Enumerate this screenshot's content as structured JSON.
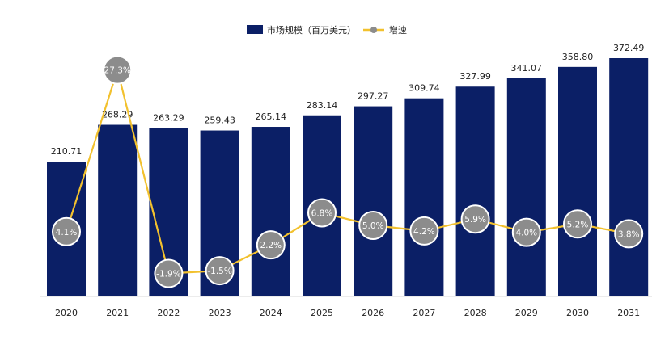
{
  "colors": {
    "bar": "#0B1F66",
    "line": "#F2C12E",
    "marker_fill": "#8C8C8C",
    "marker_stroke": "#FFFFFF",
    "label_text": "#222222",
    "marker_text": "#FFFFFF"
  },
  "chart_data": {
    "type": "bar",
    "title": "",
    "xlabel": "",
    "ylabel": "",
    "categories": [
      "2020",
      "2021",
      "2022",
      "2023",
      "2024",
      "2025",
      "2026",
      "2027",
      "2028",
      "2029",
      "2030",
      "2031"
    ],
    "series": [
      {
        "name": "市场规模（百万美元）",
        "type": "bar",
        "values": [
          210.71,
          268.29,
          263.29,
          259.43,
          265.14,
          283.14,
          297.27,
          309.74,
          327.99,
          341.07,
          358.8,
          372.49
        ],
        "labels": [
          "210.71",
          "268.29",
          "263.29",
          "259.43",
          "265.14",
          "283.14",
          "297.27",
          "309.74",
          "327.99",
          "341.07",
          "358.80",
          "372.49"
        ]
      },
      {
        "name": "增速",
        "type": "line",
        "values": [
          4.1,
          27.3,
          -1.9,
          -1.5,
          2.2,
          6.8,
          5.0,
          4.2,
          5.9,
          4.0,
          5.2,
          3.8
        ],
        "labels": [
          "4.1%",
          "27.3%",
          "-1.9%",
          "-1.5%",
          "2.2%",
          "6.8%",
          "5.0%",
          "4.2%",
          "5.9%",
          "4.0%",
          "5.2%",
          "3.8%"
        ]
      }
    ],
    "legend_position": "top-center",
    "grid": false,
    "ylim_bar": [
      0,
      372.49
    ],
    "ylim_line": [
      -3,
      29
    ]
  }
}
